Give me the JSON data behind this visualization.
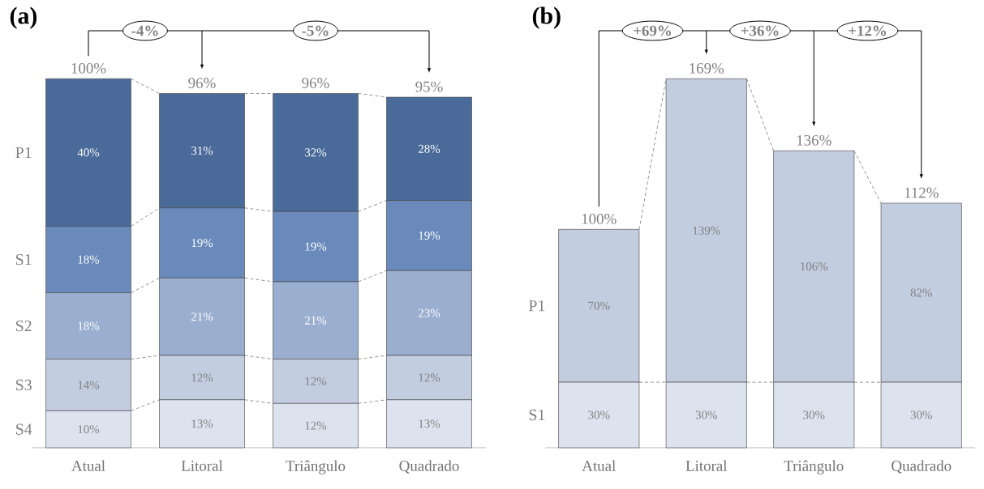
{
  "chart_data": [
    {
      "type": "bar",
      "stacked": true,
      "title": "(a)",
      "categories": [
        "Atual",
        "Litoral",
        "Triângulo",
        "Quadrado"
      ],
      "series": [
        {
          "name": "S4",
          "color": "#dde3ee",
          "values": [
            10,
            13,
            12,
            13
          ],
          "value_labels": [
            "10%",
            "13%",
            "12%",
            "13%"
          ]
        },
        {
          "name": "S3",
          "color": "#c3cde0",
          "values": [
            14,
            12,
            12,
            12
          ],
          "value_labels": [
            "14%",
            "12%",
            "12%",
            "12%"
          ]
        },
        {
          "name": "S2",
          "color": "#9aafd0",
          "values": [
            18,
            21,
            21,
            23
          ],
          "value_labels": [
            "18%",
            "21%",
            "21%",
            "23%"
          ]
        },
        {
          "name": "S1",
          "color": "#6a8abb",
          "values": [
            18,
            19,
            19,
            19
          ],
          "value_labels": [
            "18%",
            "19%",
            "19%",
            "19%"
          ]
        },
        {
          "name": "P1",
          "color": "#4a6a9a",
          "values": [
            40,
            31,
            32,
            28
          ],
          "value_labels": [
            "40%",
            "31%",
            "32%",
            "28%"
          ]
        }
      ],
      "totals": [
        "100%",
        "96%",
        "96%",
        "95%"
      ],
      "annotations": [
        "-4%",
        "-5%"
      ],
      "legend": false
    },
    {
      "type": "bar",
      "stacked": true,
      "title": "(b)",
      "categories": [
        "Atual",
        "Litoral",
        "Triângulo",
        "Quadrado"
      ],
      "series": [
        {
          "name": "S1",
          "color": "#dde3ee",
          "values": [
            30,
            30,
            30,
            30
          ],
          "value_labels": [
            "30%",
            "30%",
            "30%",
            "30%"
          ]
        },
        {
          "name": "P1",
          "color": "#c3cde0",
          "values": [
            70,
            139,
            106,
            82
          ],
          "value_labels": [
            "70%",
            "139%",
            "106%",
            "82%"
          ]
        }
      ],
      "totals": [
        "100%",
        "169%",
        "136%",
        "112%"
      ],
      "annotations": [
        "+69%",
        "+36%",
        "+12%"
      ],
      "legend": false
    }
  ]
}
